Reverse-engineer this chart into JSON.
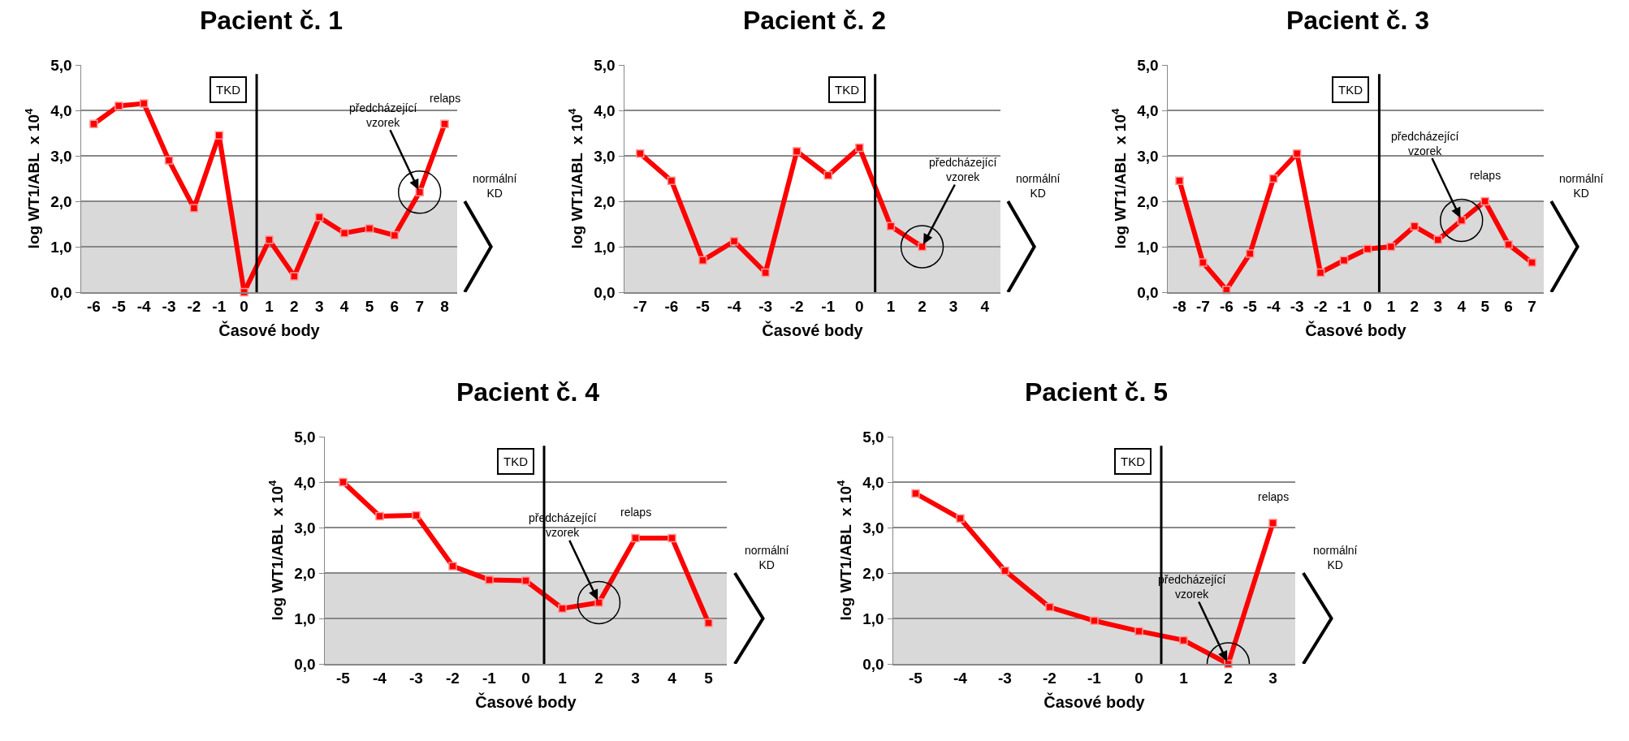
{
  "chart_data": [
    {
      "type": "line",
      "title": "Pacient č. 1",
      "xlabel": "Časové body",
      "ylabel": "log WT1/ABL  x 10$^{4}$",
      "x": [
        -6,
        -5,
        -4,
        -3,
        -2,
        -1,
        0,
        1,
        2,
        3,
        4,
        5,
        6,
        7,
        8
      ],
      "series": [
        {
          "color": "#ff0000",
          "values": [
            3.7,
            4.1,
            4.15,
            2.9,
            1.85,
            3.45,
            0.0,
            1.15,
            0.35,
            1.65,
            1.3,
            1.4,
            1.25,
            2.2,
            3.7
          ]
        }
      ],
      "xlim": [
        -6.5,
        8.5
      ],
      "xticks": [
        -6,
        -5,
        -4,
        -3,
        -2,
        -1,
        0,
        1,
        2,
        3,
        4,
        5,
        6,
        7,
        8
      ],
      "ylim": [
        0,
        5
      ],
      "yticks": [
        {
          "value": 0,
          "label": "0,0"
        },
        {
          "value": 1,
          "label": "1,0"
        },
        {
          "value": 2,
          "label": "2,0"
        },
        {
          "value": 3,
          "label": "3,0"
        },
        {
          "value": 4,
          "label": "4,0"
        },
        {
          "value": 5,
          "label": "5,0"
        }
      ],
      "grid": "y",
      "marker": "square",
      "ref_lines": [
        {
          "axis": "x",
          "value": 0.5,
          "label": "TKD",
          "color": "#000000"
        }
      ],
      "bands": [
        {
          "axis": "y",
          "from": 0,
          "to": 2,
          "label": "normální KD",
          "color": "#d9d9d9"
        }
      ],
      "annotations": [
        {
          "text": "předcházející vzorek",
          "x": 7,
          "y": 2.2
        },
        {
          "text": "relaps",
          "x": 8,
          "y": 3.7
        }
      ]
    },
    {
      "type": "line",
      "title": "Pacient č. 2",
      "xlabel": "Časové body",
      "ylabel": "log WT1/ABL  x 10$^{4}$",
      "x": [
        -7,
        -6,
        -5,
        -4,
        -3,
        -2,
        -1,
        0,
        1,
        2
      ],
      "series": [
        {
          "color": "#ff0000",
          "values": [
            3.05,
            2.45,
            0.7,
            1.12,
            0.43,
            3.1,
            2.57,
            3.18,
            1.45,
            1.0
          ]
        }
      ],
      "xlim": [
        -7.5,
        4.5
      ],
      "xticks": [
        -7,
        -6,
        -5,
        -4,
        -3,
        -2,
        -1,
        0,
        1,
        2,
        3,
        4
      ],
      "ylim": [
        0,
        5
      ],
      "yticks": [
        {
          "value": 0,
          "label": "0,0"
        },
        {
          "value": 1,
          "label": "1,0"
        },
        {
          "value": 2,
          "label": "2,0"
        },
        {
          "value": 3,
          "label": "3,0"
        },
        {
          "value": 4,
          "label": "4,0"
        },
        {
          "value": 5,
          "label": "5,0"
        }
      ],
      "grid": "y",
      "marker": "square",
      "ref_lines": [
        {
          "axis": "x",
          "value": 0.5,
          "label": "TKD",
          "color": "#000000"
        }
      ],
      "bands": [
        {
          "axis": "y",
          "from": 0,
          "to": 2,
          "label": "normální KD",
          "color": "#d9d9d9"
        }
      ],
      "annotations": [
        {
          "text": "předcházející vzorek",
          "x": 2,
          "y": 1.0
        }
      ]
    },
    {
      "type": "line",
      "title": "Pacient č. 3",
      "xlabel": "Časové body",
      "ylabel": "log WT1/ABL  x 10$^{4}$",
      "x": [
        -8,
        -7,
        -6,
        -5,
        -4,
        -3,
        -2,
        -1,
        0,
        1,
        2,
        3,
        4,
        5,
        6,
        7
      ],
      "series": [
        {
          "color": "#ff0000",
          "values": [
            2.45,
            0.65,
            0.05,
            0.85,
            2.5,
            3.05,
            0.43,
            0.7,
            0.95,
            1.0,
            1.45,
            1.15,
            1.58,
            2.0,
            1.05,
            0.65
          ]
        }
      ],
      "xlim": [
        -8.5,
        7.5
      ],
      "xticks": [
        -8,
        -7,
        -6,
        -5,
        -4,
        -3,
        -2,
        -1,
        0,
        1,
        2,
        3,
        4,
        5,
        6,
        7
      ],
      "ylim": [
        0,
        5
      ],
      "yticks": [
        {
          "value": 0,
          "label": "0,0"
        },
        {
          "value": 1,
          "label": "1,0"
        },
        {
          "value": 2,
          "label": "2,0"
        },
        {
          "value": 3,
          "label": "3,0"
        },
        {
          "value": 4,
          "label": "4,0"
        },
        {
          "value": 5,
          "label": "5,0"
        }
      ],
      "grid": "y",
      "marker": "square",
      "ref_lines": [
        {
          "axis": "x",
          "value": 0.5,
          "label": "TKD",
          "color": "#000000"
        }
      ],
      "bands": [
        {
          "axis": "y",
          "from": 0,
          "to": 2,
          "label": "normální KD",
          "color": "#d9d9d9"
        }
      ],
      "annotations": [
        {
          "text": "předcházející vzorek",
          "x": 4,
          "y": 1.58
        },
        {
          "text": "relaps",
          "x": 5,
          "y": 2.0
        }
      ]
    },
    {
      "type": "line",
      "title": "Pacient č. 4",
      "xlabel": "Časové body",
      "ylabel": "log WT1/ABL  x 10$^{4}$",
      "x": [
        -5,
        -4,
        -3,
        -2,
        -1,
        0,
        1,
        2,
        3,
        4,
        5
      ],
      "series": [
        {
          "color": "#ff0000",
          "values": [
            4.0,
            3.25,
            3.27,
            2.15,
            1.85,
            1.83,
            1.22,
            1.35,
            2.77,
            2.77,
            0.9
          ]
        }
      ],
      "xlim": [
        -5.5,
        5.5
      ],
      "xticks": [
        -5,
        -4,
        -3,
        -2,
        -1,
        0,
        1,
        2,
        3,
        4,
        5
      ],
      "ylim": [
        0,
        5
      ],
      "yticks": [
        {
          "value": 0,
          "label": "0,0"
        },
        {
          "value": 1,
          "label": "1,0"
        },
        {
          "value": 2,
          "label": "2,0"
        },
        {
          "value": 3,
          "label": "3,0"
        },
        {
          "value": 4,
          "label": "4,0"
        },
        {
          "value": 5,
          "label": "5,0"
        }
      ],
      "grid": "y",
      "marker": "square",
      "ref_lines": [
        {
          "axis": "x",
          "value": 0.5,
          "label": "TKD",
          "color": "#000000"
        }
      ],
      "bands": [
        {
          "axis": "y",
          "from": 0,
          "to": 2,
          "label": "normální KD",
          "color": "#d9d9d9"
        }
      ],
      "annotations": [
        {
          "text": "předcházející vzorek",
          "x": 2,
          "y": 1.35
        },
        {
          "text": "relaps",
          "x": 3,
          "y": 2.77
        }
      ]
    },
    {
      "type": "line",
      "title": "Pacient č. 5",
      "xlabel": "Časové body",
      "ylabel": "log WT1/ABL  x 10$^{4}$",
      "x": [
        -5,
        -4,
        -3,
        -2,
        -1,
        0,
        1,
        2,
        3
      ],
      "series": [
        {
          "color": "#ff0000",
          "values": [
            3.75,
            3.2,
            2.05,
            1.25,
            0.95,
            0.72,
            0.52,
            0.0,
            3.1
          ]
        }
      ],
      "xlim": [
        -5.5,
        3.5
      ],
      "xticks": [
        -5,
        -4,
        -3,
        -2,
        -1,
        0,
        1,
        2,
        3
      ],
      "ylim": [
        0,
        5
      ],
      "yticks": [
        {
          "value": 0,
          "label": "0,0"
        },
        {
          "value": 1,
          "label": "1,0"
        },
        {
          "value": 2,
          "label": "2,0"
        },
        {
          "value": 3,
          "label": "3,0"
        },
        {
          "value": 4,
          "label": "4,0"
        },
        {
          "value": 5,
          "label": "5,0"
        }
      ],
      "grid": "y",
      "marker": "square",
      "ref_lines": [
        {
          "axis": "x",
          "value": 0.5,
          "label": "TKD",
          "color": "#000000"
        }
      ],
      "bands": [
        {
          "axis": "y",
          "from": 0,
          "to": 2,
          "label": "normální KD",
          "color": "#d9d9d9"
        }
      ],
      "annotations": [
        {
          "text": "předcházející vzorek",
          "x": 2,
          "y": 0.0
        },
        {
          "text": "relaps",
          "x": 3,
          "y": 3.1
        }
      ]
    }
  ]
}
